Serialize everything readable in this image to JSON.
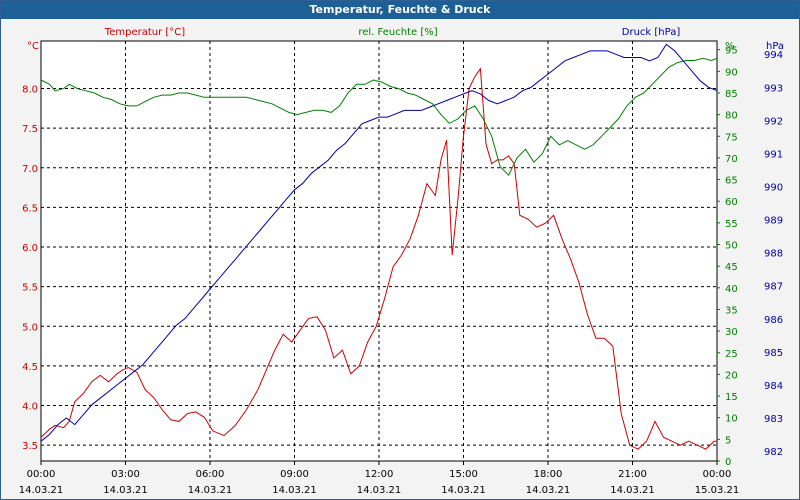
{
  "window": {
    "title": "Temperatur, Feuchte & Druck"
  },
  "colors": {
    "temp": "#cc0000",
    "hum": "#008000",
    "press": "#0000aa",
    "grid": "#000000",
    "axis": "#000000"
  },
  "chart_data": {
    "type": "line",
    "title": "Temperatur, Feuchte & Druck",
    "grid": true,
    "x_ticks": [
      {
        "time": "00:00",
        "date": "14.03.21"
      },
      {
        "time": "03:00",
        "date": "14.03.21"
      },
      {
        "time": "06:00",
        "date": "14.03.21"
      },
      {
        "time": "09:00",
        "date": "14.03.21"
      },
      {
        "time": "12:00",
        "date": "14.03.21"
      },
      {
        "time": "15:00",
        "date": "14.03.21"
      },
      {
        "time": "18:00",
        "date": "14.03.21"
      },
      {
        "time": "21:00",
        "date": "14.03.21"
      },
      {
        "time": "00:00",
        "date": "15.03.21"
      }
    ],
    "axes": {
      "temp": {
        "label": "Temperatur [°C]",
        "unit": "°C",
        "ylim": [
          3.3,
          8.6
        ],
        "ticks": [
          "3.5",
          "4.0",
          "4.5",
          "5.0",
          "5.5",
          "6.0",
          "6.5",
          "7.0",
          "7.5",
          "8.0"
        ]
      },
      "hum": {
        "label": "rel. Feuchte [%]",
        "unit": "%",
        "ylim": [
          0,
          97
        ],
        "ticks": [
          "0",
          "5",
          "10",
          "15",
          "20",
          "25",
          "30",
          "35",
          "40",
          "45",
          "50",
          "55",
          "60",
          "65",
          "70",
          "75",
          "80",
          "85",
          "90",
          "95"
        ]
      },
      "press": {
        "label": "Druck [hPa]",
        "unit": "hPa",
        "ylim": [
          981.7,
          994.4
        ],
        "ticks": [
          "982",
          "983",
          "984",
          "985",
          "986",
          "987",
          "988",
          "989",
          "990",
          "991",
          "992",
          "993",
          "994"
        ]
      }
    },
    "series": [
      {
        "name": "Temperatur [°C]",
        "axis": "temp",
        "color": "#cc0000",
        "x": [
          0,
          0.3,
          0.5,
          0.8,
          1.0,
          1.2,
          1.5,
          1.8,
          2.1,
          2.4,
          2.7,
          2.9,
          3.1,
          3.4,
          3.7,
          4.0,
          4.3,
          4.6,
          4.9,
          5.2,
          5.5,
          5.8,
          6.1,
          6.5,
          6.9,
          7.3,
          7.7,
          8.0,
          8.3,
          8.6,
          8.9,
          9.2,
          9.5,
          9.8,
          10.1,
          10.4,
          10.7,
          11.0,
          11.3,
          11.6,
          11.9,
          12.2,
          12.5,
          12.8,
          13.1,
          13.4,
          13.7,
          14.0,
          14.2,
          14.4,
          14.6,
          14.8,
          15.0,
          15.2,
          15.4,
          15.6,
          15.8,
          16.0,
          16.2,
          16.4,
          16.6,
          16.8,
          17.0,
          17.3,
          17.6,
          17.9,
          18.2,
          18.5,
          18.8,
          19.1,
          19.4,
          19.7,
          20.0,
          20.3,
          20.6,
          20.9,
          21.2,
          21.5,
          21.8,
          22.1,
          22.4,
          22.7,
          23.0,
          23.3,
          23.6,
          23.9,
          24.0
        ],
        "values": [
          3.6,
          3.7,
          3.75,
          3.72,
          3.8,
          4.05,
          4.15,
          4.3,
          4.38,
          4.3,
          4.4,
          4.45,
          4.48,
          4.42,
          4.2,
          4.1,
          3.95,
          3.82,
          3.8,
          3.9,
          3.92,
          3.85,
          3.68,
          3.62,
          3.75,
          3.95,
          4.2,
          4.45,
          4.7,
          4.9,
          4.8,
          4.95,
          5.1,
          5.12,
          4.95,
          4.6,
          4.7,
          4.4,
          4.5,
          4.8,
          5.0,
          5.35,
          5.75,
          5.9,
          6.1,
          6.4,
          6.8,
          6.65,
          7.1,
          7.35,
          5.9,
          6.6,
          7.4,
          8.0,
          8.15,
          8.25,
          7.3,
          7.05,
          7.1,
          7.1,
          7.15,
          7.05,
          6.4,
          6.35,
          6.25,
          6.3,
          6.4,
          6.1,
          5.85,
          5.55,
          5.15,
          4.85,
          4.85,
          4.75,
          3.9,
          3.5,
          3.45,
          3.55,
          3.8,
          3.6,
          3.55,
          3.5,
          3.55,
          3.5,
          3.45,
          3.55,
          3.55
        ]
      },
      {
        "name": "rel. Feuchte [%]",
        "axis": "hum",
        "color": "#008000",
        "x": [
          0,
          0.3,
          0.5,
          0.8,
          1.0,
          1.3,
          1.6,
          1.9,
          2.2,
          2.5,
          2.8,
          3.1,
          3.4,
          3.7,
          4.0,
          4.3,
          4.6,
          4.9,
          5.2,
          5.5,
          5.8,
          6.1,
          6.4,
          6.7,
          7.0,
          7.3,
          7.6,
          7.9,
          8.2,
          8.5,
          8.8,
          9.1,
          9.4,
          9.7,
          10.0,
          10.3,
          10.6,
          10.9,
          11.2,
          11.5,
          11.8,
          12.1,
          12.4,
          12.7,
          13.0,
          13.3,
          13.6,
          13.9,
          14.2,
          14.5,
          14.8,
          15.1,
          15.4,
          15.7,
          16.0,
          16.3,
          16.6,
          16.9,
          17.2,
          17.5,
          17.8,
          18.1,
          18.4,
          18.7,
          19.0,
          19.3,
          19.6,
          19.9,
          20.2,
          20.5,
          20.8,
          21.1,
          21.4,
          21.7,
          22.0,
          22.3,
          22.6,
          22.9,
          23.2,
          23.5,
          23.8,
          24.0
        ],
        "values": [
          88,
          87,
          85.5,
          86,
          87,
          86,
          85.5,
          85,
          84,
          83.5,
          82.5,
          82,
          82,
          83,
          84,
          84.5,
          84.5,
          85,
          85,
          84.5,
          84,
          84,
          84,
          84,
          84,
          84,
          83.5,
          83,
          82.5,
          81.5,
          80.5,
          80,
          80.5,
          81,
          81,
          80.5,
          82,
          85,
          87,
          87,
          88,
          87.5,
          86.5,
          86,
          85,
          84.5,
          83.5,
          82.5,
          80,
          78,
          79,
          81,
          82,
          79,
          75,
          68,
          66,
          70,
          72,
          69,
          71,
          75,
          73,
          74,
          73,
          72,
          73,
          75,
          77,
          79,
          82,
          84,
          85,
          87,
          89,
          91,
          92,
          92.5,
          92.5,
          93,
          92.5,
          93
        ]
      },
      {
        "name": "Druck [hPa]",
        "axis": "press",
        "color": "#0000aa",
        "x": [
          0,
          0.3,
          0.6,
          0.9,
          1.2,
          1.5,
          1.8,
          2.1,
          2.4,
          2.7,
          3.0,
          3.3,
          3.6,
          3.9,
          4.2,
          4.5,
          4.8,
          5.1,
          5.4,
          5.7,
          6.0,
          6.3,
          6.6,
          6.9,
          7.2,
          7.5,
          7.8,
          8.1,
          8.4,
          8.7,
          9.0,
          9.3,
          9.6,
          9.9,
          10.2,
          10.5,
          10.8,
          11.1,
          11.4,
          11.7,
          12.0,
          12.3,
          12.6,
          12.9,
          13.2,
          13.5,
          13.8,
          14.1,
          14.4,
          14.7,
          15.0,
          15.3,
          15.6,
          15.9,
          16.2,
          16.5,
          16.8,
          17.1,
          17.4,
          17.7,
          18.0,
          18.3,
          18.6,
          18.9,
          19.2,
          19.5,
          19.8,
          20.1,
          20.4,
          20.7,
          21.0,
          21.3,
          21.6,
          21.9,
          22.2,
          22.5,
          22.8,
          23.1,
          23.4,
          23.7,
          24.0
        ],
        "values": [
          982.3,
          982.5,
          982.8,
          983.0,
          982.8,
          983.1,
          983.4,
          983.6,
          983.8,
          984.0,
          984.2,
          984.4,
          984.6,
          984.9,
          985.2,
          985.5,
          985.8,
          986.0,
          986.3,
          986.6,
          986.9,
          987.2,
          987.5,
          987.8,
          988.1,
          988.4,
          988.7,
          989.0,
          989.3,
          989.6,
          989.9,
          990.1,
          990.4,
          990.6,
          990.8,
          991.1,
          991.3,
          991.6,
          991.9,
          992.0,
          992.1,
          992.1,
          992.2,
          992.3,
          992.3,
          992.3,
          992.4,
          992.5,
          992.6,
          992.7,
          992.8,
          992.9,
          992.8,
          992.6,
          992.5,
          992.6,
          992.7,
          992.9,
          993.0,
          993.2,
          993.4,
          993.6,
          993.8,
          993.9,
          994.0,
          994.1,
          994.1,
          994.1,
          994.0,
          993.9,
          993.9,
          993.9,
          993.8,
          993.9,
          994.3,
          994.1,
          993.8,
          993.5,
          993.2,
          993.0,
          992.9
        ]
      }
    ]
  }
}
